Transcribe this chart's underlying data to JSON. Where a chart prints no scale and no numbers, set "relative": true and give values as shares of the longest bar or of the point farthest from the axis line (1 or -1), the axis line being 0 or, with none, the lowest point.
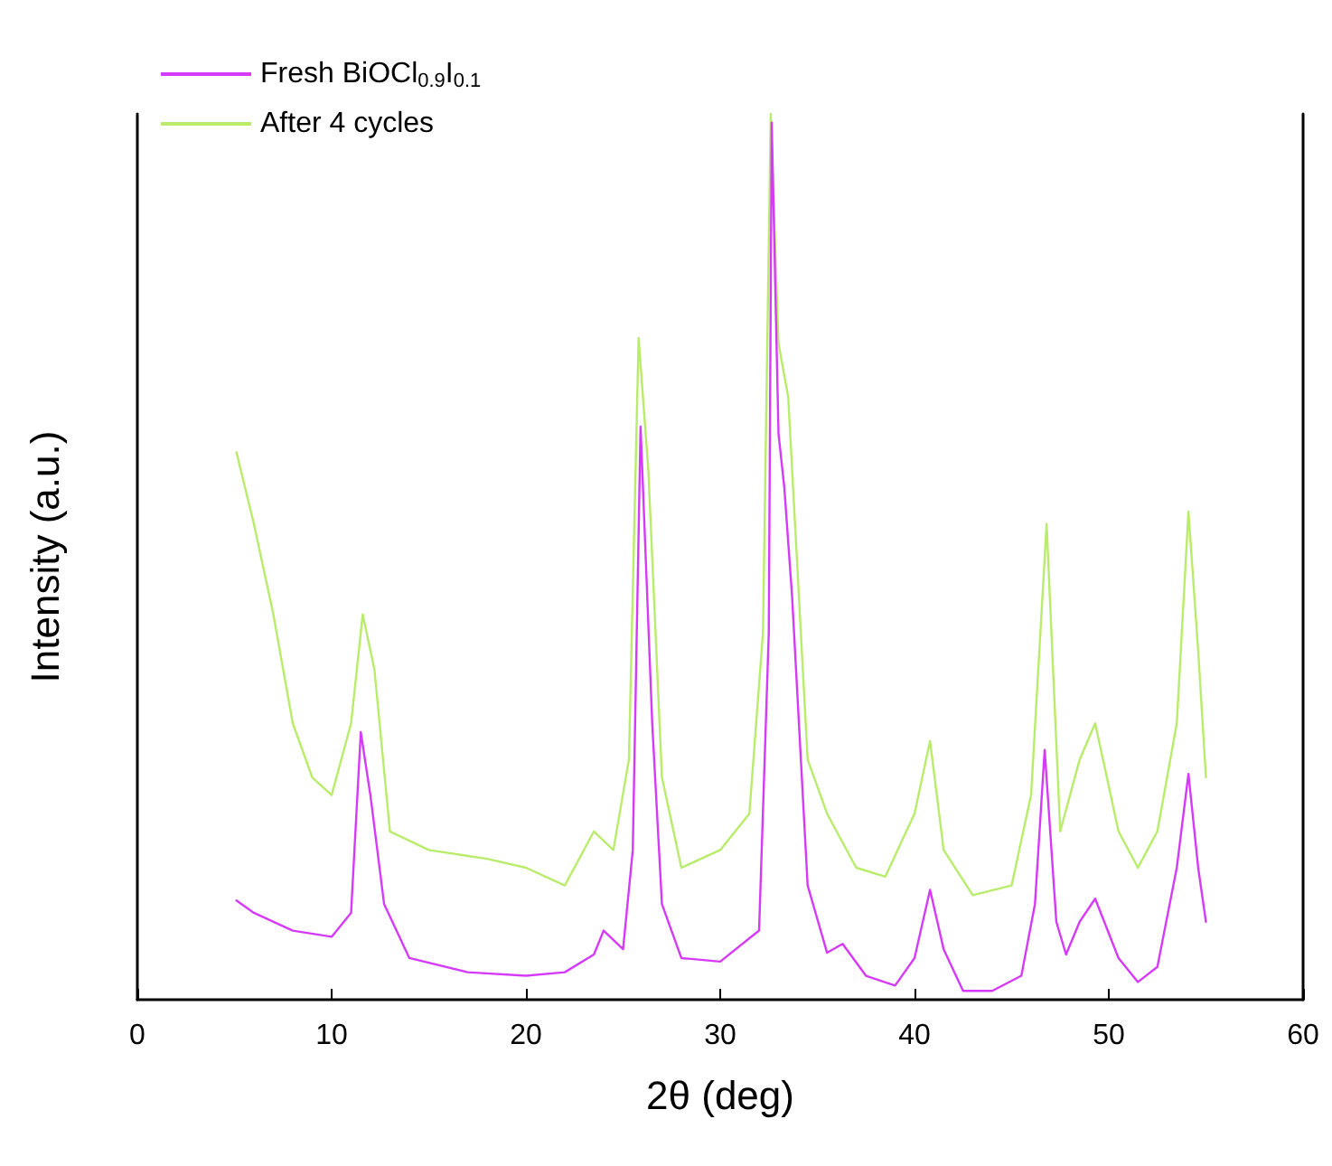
{
  "chart_data": {
    "type": "line",
    "xlabel": "2θ (deg)",
    "ylabel": "Intensity (a.u.)",
    "relative": true,
    "xlim": [
      0,
      60
    ],
    "xticks": [
      0,
      10,
      20,
      30,
      40,
      50,
      60
    ],
    "grid": false,
    "legend": "top left",
    "marker": "none",
    "line_style": "solid",
    "series": [
      {
        "name": "Fresh BiOCl$_{0.9}$I$_{0.1}$",
        "color": "#d63af9",
        "x": [
          5.1,
          6,
          8,
          10,
          11,
          11.5,
          12,
          12.7,
          14,
          17,
          20,
          22,
          23.5,
          24,
          25,
          25.5,
          25.9,
          26.5,
          27,
          28,
          30,
          32,
          32.5,
          32.65,
          33,
          33.3,
          33.7,
          34.5,
          35.5,
          36.3,
          37.5,
          39,
          40,
          40.8,
          41.5,
          42.5,
          44,
          45.5,
          46.2,
          46.7,
          47.3,
          47.8,
          48.5,
          49.3,
          50.5,
          51.5,
          52.5,
          53.5,
          54.1,
          54.6,
          55
        ],
        "values": [
          0.112,
          0.098,
          0.078,
          0.071,
          0.098,
          0.302,
          0.23,
          0.108,
          0.047,
          0.031,
          0.027,
          0.031,
          0.051,
          0.078,
          0.057,
          0.169,
          0.647,
          0.312,
          0.108,
          0.047,
          0.043,
          0.078,
          0.414,
          0.99,
          0.639,
          0.578,
          0.455,
          0.129,
          0.053,
          0.063,
          0.027,
          0.016,
          0.047,
          0.124,
          0.057,
          0.01,
          0.01,
          0.027,
          0.108,
          0.282,
          0.088,
          0.051,
          0.088,
          0.114,
          0.047,
          0.02,
          0.037,
          0.149,
          0.255,
          0.149,
          0.088
        ]
      },
      {
        "name": "After 4 cycles",
        "color": "#b9ec6b",
        "x": [
          5.1,
          6,
          7,
          8,
          9,
          10,
          11,
          11.6,
          12.2,
          13,
          15,
          18,
          20,
          22,
          23.5,
          24.5,
          25.3,
          25.8,
          26.3,
          27,
          28,
          30,
          31.5,
          32.2,
          32.6,
          33,
          33.5,
          34,
          34.5,
          35.5,
          37,
          38.5,
          40,
          40.8,
          41.5,
          43,
          45,
          46,
          46.8,
          47.5,
          48.5,
          49.3,
          50.5,
          51.5,
          52.5,
          53.5,
          54.1,
          54.6,
          55
        ],
        "values": [
          0.618,
          0.537,
          0.435,
          0.312,
          0.251,
          0.231,
          0.312,
          0.435,
          0.373,
          0.19,
          0.169,
          0.159,
          0.149,
          0.129,
          0.19,
          0.169,
          0.271,
          0.747,
          0.598,
          0.251,
          0.149,
          0.169,
          0.21,
          0.414,
          1,
          0.741,
          0.68,
          0.476,
          0.271,
          0.21,
          0.149,
          0.139,
          0.21,
          0.292,
          0.169,
          0.118,
          0.129,
          0.231,
          0.537,
          0.19,
          0.271,
          0.312,
          0.19,
          0.149,
          0.19,
          0.312,
          0.551,
          0.394,
          0.251
        ]
      }
    ]
  }
}
